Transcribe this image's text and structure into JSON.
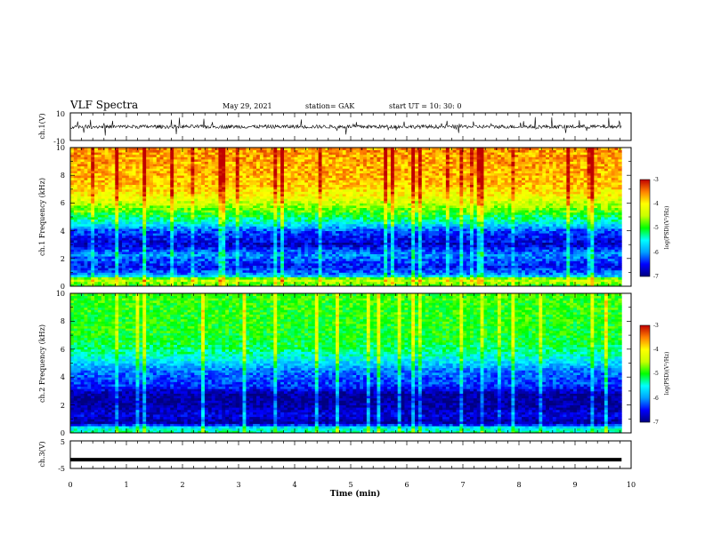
{
  "header": {
    "title": "VLF Spectra",
    "date": "May 29, 2021",
    "station": "station= GAK",
    "start": "start  UT  =   10: 30: 0"
  },
  "chart_data": [
    {
      "type": "line",
      "panel": "ch1-waveform",
      "ylabel": "ch.1(V)",
      "ylim": [
        -10,
        10
      ],
      "yticks": [
        "10",
        "-10"
      ],
      "xlim": [
        0,
        10
      ],
      "baseline": 0,
      "note": "dense noisy waveform centred on 0 V with amplitude roughly ±2 V"
    },
    {
      "type": "heatmap",
      "panel": "ch1-spectrogram",
      "ylabel": "ch.1 Frequency (kHz)",
      "ylim": [
        0,
        10
      ],
      "yticks": [
        "0",
        "2",
        "4",
        "6",
        "8",
        "10"
      ],
      "xlim": [
        0,
        9.83
      ],
      "levels_by_frequency_khz": [
        {
          "f": 0.0,
          "log_psd": -5.0
        },
        {
          "f": 0.5,
          "log_psd": -4.3
        },
        {
          "f": 0.8,
          "log_psd": -6.0
        },
        {
          "f": 1.4,
          "log_psd": -6.5
        },
        {
          "f": 2.3,
          "log_psd": -6.0
        },
        {
          "f": 3.0,
          "log_psd": -6.7
        },
        {
          "f": 4.0,
          "log_psd": -6.3
        },
        {
          "f": 4.6,
          "log_psd": -5.5
        },
        {
          "f": 5.2,
          "log_psd": -5.0
        },
        {
          "f": 5.8,
          "log_psd": -4.6
        },
        {
          "f": 6.5,
          "log_psd": -4.1
        },
        {
          "f": 7.5,
          "log_psd": -3.75
        },
        {
          "f": 10.0,
          "log_psd": -3.6
        }
      ]
    },
    {
      "type": "heatmap",
      "panel": "ch2-spectrogram",
      "ylabel": "ch.2 Frequency (kHz)",
      "ylim": [
        0,
        10
      ],
      "yticks": [
        "0",
        "2",
        "4",
        "6",
        "8",
        "10"
      ],
      "xlim": [
        0,
        9.83
      ],
      "levels_by_frequency_khz": [
        {
          "f": 0.0,
          "log_psd": -5.2
        },
        {
          "f": 0.4,
          "log_psd": -5.6
        },
        {
          "f": 0.7,
          "log_psd": -6.9
        },
        {
          "f": 1.3,
          "log_psd": -6.6
        },
        {
          "f": 2.0,
          "log_psd": -6.9
        },
        {
          "f": 2.8,
          "log_psd": -6.9
        },
        {
          "f": 3.3,
          "log_psd": -6.4
        },
        {
          "f": 4.5,
          "log_psd": -6.1
        },
        {
          "f": 5.2,
          "log_psd": -5.6
        },
        {
          "f": 6.0,
          "log_psd": -5.2
        },
        {
          "f": 7.0,
          "log_psd": -5.0
        },
        {
          "f": 10.0,
          "log_psd": -4.9
        }
      ]
    },
    {
      "type": "line",
      "panel": "ch3-waveform",
      "ylabel": "ch.3(V)",
      "ylim": [
        -5,
        5
      ],
      "yticks": [
        "5",
        "-5"
      ],
      "xlim": [
        0,
        10
      ],
      "y": -1.8,
      "note": "flat thick line"
    },
    {
      "panel": "time-axis",
      "xlabel": "Time  (min)",
      "xticks": [
        "0",
        "1",
        "2",
        "3",
        "4",
        "5",
        "6",
        "7",
        "8",
        "9",
        "10"
      ]
    }
  ],
  "colorbars": [
    {
      "panel": "ch1-colorbar",
      "label": "log(PSD)(V²/Hz)",
      "ticks": [
        "-3",
        "-4",
        "-5",
        "-6",
        "-7"
      ],
      "range": [
        -7,
        -3
      ]
    },
    {
      "panel": "ch2-colorbar",
      "label": "log(PSD)(V²/Hz)",
      "ticks": [
        "-3",
        "-4",
        "-5",
        "-6",
        "-7"
      ],
      "range": [
        -7,
        -3
      ]
    }
  ],
  "colors": {
    "axis": "#000000",
    "background": "#ffffff",
    "trace": "#000000"
  }
}
